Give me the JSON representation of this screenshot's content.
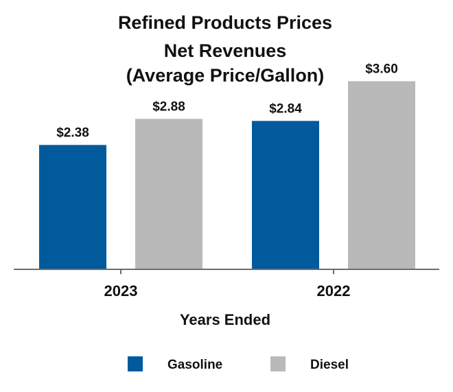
{
  "chart_data": {
    "type": "bar",
    "title": [
      "Refined Products Prices",
      "Net Revenues",
      "(Average Price/Gallon)"
    ],
    "xlabel": "Years Ended",
    "ylabel": "",
    "categories": [
      "2023",
      "2022"
    ],
    "ylim": [
      0,
      4.0
    ],
    "grid": false,
    "legend_position": "bottom",
    "series": [
      {
        "name": "Gasoline",
        "color": "#005a9c",
        "values": [
          2.38,
          2.84
        ],
        "labels": [
          "$2.38",
          "$2.84"
        ]
      },
      {
        "name": "Diesel",
        "color": "#b9b9b9",
        "values": [
          2.88,
          3.6
        ],
        "labels": [
          "$2.88",
          "$3.60"
        ]
      }
    ]
  }
}
